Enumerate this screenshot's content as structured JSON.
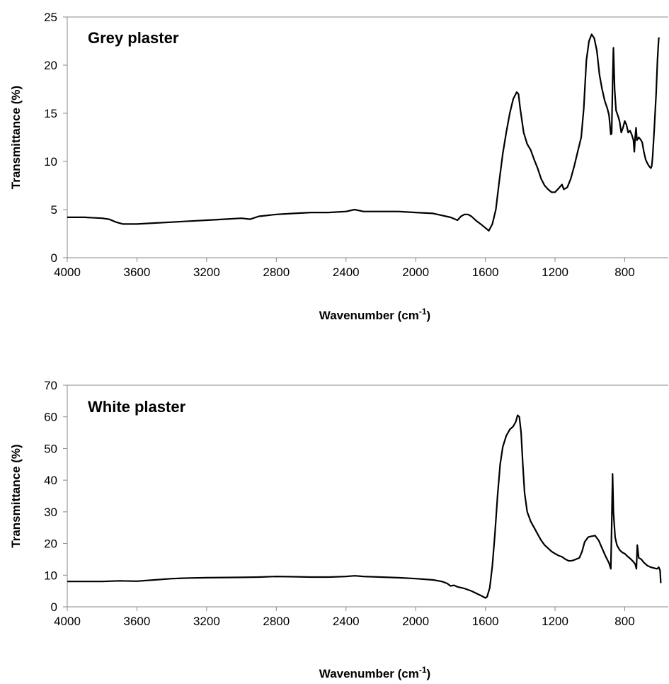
{
  "chart_data": [
    {
      "type": "line",
      "title": "Grey plaster",
      "xlabel": "Wavenumber (cm",
      "xlabel_sup": "-1",
      "xlabel_close": ")",
      "ylabel": "Transmittance (%)",
      "xlim": [
        4000,
        550
      ],
      "ylim": [
        0,
        25
      ],
      "x_ticks": [
        4000,
        3600,
        3200,
        2800,
        2400,
        2000,
        1600,
        1200,
        800
      ],
      "y_ticks": [
        0,
        5,
        10,
        15,
        20,
        25
      ],
      "grid": false,
      "series": [
        {
          "points": [
            [
              4000,
              4.2
            ],
            [
              3900,
              4.2
            ],
            [
              3800,
              4.1
            ],
            [
              3760,
              4.0
            ],
            [
              3720,
              3.7
            ],
            [
              3680,
              3.5
            ],
            [
              3600,
              3.5
            ],
            [
              3500,
              3.6
            ],
            [
              3400,
              3.7
            ],
            [
              3300,
              3.8
            ],
            [
              3200,
              3.9
            ],
            [
              3100,
              4.0
            ],
            [
              3000,
              4.1
            ],
            [
              2950,
              4.0
            ],
            [
              2900,
              4.3
            ],
            [
              2800,
              4.5
            ],
            [
              2700,
              4.6
            ],
            [
              2600,
              4.7
            ],
            [
              2500,
              4.7
            ],
            [
              2400,
              4.8
            ],
            [
              2350,
              5.0
            ],
            [
              2300,
              4.8
            ],
            [
              2200,
              4.8
            ],
            [
              2100,
              4.8
            ],
            [
              2000,
              4.7
            ],
            [
              1900,
              4.6
            ],
            [
              1850,
              4.4
            ],
            [
              1800,
              4.2
            ],
            [
              1760,
              3.9
            ],
            [
              1740,
              4.3
            ],
            [
              1720,
              4.5
            ],
            [
              1700,
              4.5
            ],
            [
              1680,
              4.3
            ],
            [
              1650,
              3.8
            ],
            [
              1620,
              3.4
            ],
            [
              1600,
              3.1
            ],
            [
              1580,
              2.8
            ],
            [
              1560,
              3.5
            ],
            [
              1540,
              5.0
            ],
            [
              1520,
              8.0
            ],
            [
              1500,
              10.8
            ],
            [
              1480,
              13.0
            ],
            [
              1460,
              15.0
            ],
            [
              1440,
              16.5
            ],
            [
              1420,
              17.2
            ],
            [
              1410,
              17.0
            ],
            [
              1400,
              15.5
            ],
            [
              1380,
              13.0
            ],
            [
              1360,
              11.8
            ],
            [
              1340,
              11.2
            ],
            [
              1320,
              10.2
            ],
            [
              1300,
              9.3
            ],
            [
              1280,
              8.2
            ],
            [
              1260,
              7.5
            ],
            [
              1240,
              7.1
            ],
            [
              1220,
              6.8
            ],
            [
              1200,
              6.8
            ],
            [
              1180,
              7.2
            ],
            [
              1160,
              7.6
            ],
            [
              1150,
              7.1
            ],
            [
              1130,
              7.3
            ],
            [
              1110,
              8.2
            ],
            [
              1090,
              9.5
            ],
            [
              1070,
              11.0
            ],
            [
              1050,
              12.5
            ],
            [
              1035,
              15.5
            ],
            [
              1020,
              20.5
            ],
            [
              1005,
              22.5
            ],
            [
              990,
              23.2
            ],
            [
              975,
              22.8
            ],
            [
              960,
              21.5
            ],
            [
              945,
              19.0
            ],
            [
              930,
              17.5
            ],
            [
              915,
              16.3
            ],
            [
              900,
              15.5
            ],
            [
              890,
              14.8
            ],
            [
              880,
              12.8
            ],
            [
              875,
              12.9
            ],
            [
              870,
              18.0
            ],
            [
              865,
              21.8
            ],
            [
              858,
              17.5
            ],
            [
              850,
              15.3
            ],
            [
              840,
              14.8
            ],
            [
              830,
              14.2
            ],
            [
              820,
              13.0
            ],
            [
              810,
              13.5
            ],
            [
              800,
              14.2
            ],
            [
              790,
              13.8
            ],
            [
              780,
              13.0
            ],
            [
              770,
              13.2
            ],
            [
              760,
              12.8
            ],
            [
              750,
              12.2
            ],
            [
              745,
              11.0
            ],
            [
              740,
              12.5
            ],
            [
              735,
              13.5
            ],
            [
              730,
              12.2
            ],
            [
              720,
              12.5
            ],
            [
              710,
              12.3
            ],
            [
              700,
              12.0
            ],
            [
              690,
              11.0
            ],
            [
              680,
              10.2
            ],
            [
              670,
              9.8
            ],
            [
              660,
              9.5
            ],
            [
              650,
              9.3
            ],
            [
              645,
              9.5
            ],
            [
              640,
              10.5
            ],
            [
              630,
              13.5
            ],
            [
              620,
              17.0
            ],
            [
              612,
              20.5
            ],
            [
              605,
              22.8
            ],
            [
              600,
              22.8
            ]
          ]
        }
      ]
    },
    {
      "type": "line",
      "title": "White plaster",
      "xlabel": "Wavenumber (cm",
      "xlabel_sup": "-1",
      "xlabel_close": ")",
      "ylabel": "Transmittance (%)",
      "xlim": [
        4000,
        550
      ],
      "ylim": [
        0,
        70
      ],
      "x_ticks": [
        4000,
        3600,
        3200,
        2800,
        2400,
        2000,
        1600,
        1200,
        800
      ],
      "y_ticks": [
        0,
        10,
        20,
        30,
        40,
        50,
        60,
        70
      ],
      "grid": false,
      "series": [
        {
          "points": [
            [
              4000,
              8.0
            ],
            [
              3800,
              8.0
            ],
            [
              3700,
              8.2
            ],
            [
              3600,
              8.1
            ],
            [
              3500,
              8.5
            ],
            [
              3400,
              8.9
            ],
            [
              3300,
              9.1
            ],
            [
              3200,
              9.2
            ],
            [
              3000,
              9.3
            ],
            [
              2900,
              9.4
            ],
            [
              2800,
              9.6
            ],
            [
              2700,
              9.5
            ],
            [
              2600,
              9.4
            ],
            [
              2500,
              9.4
            ],
            [
              2400,
              9.6
            ],
            [
              2350,
              9.8
            ],
            [
              2300,
              9.6
            ],
            [
              2200,
              9.4
            ],
            [
              2100,
              9.2
            ],
            [
              2000,
              8.9
            ],
            [
              1900,
              8.5
            ],
            [
              1850,
              8.0
            ],
            [
              1820,
              7.4
            ],
            [
              1800,
              6.6
            ],
            [
              1780,
              6.8
            ],
            [
              1760,
              6.3
            ],
            [
              1720,
              5.8
            ],
            [
              1680,
              5.0
            ],
            [
              1650,
              4.2
            ],
            [
              1620,
              3.4
            ],
            [
              1600,
              2.8
            ],
            [
              1590,
              3.2
            ],
            [
              1575,
              6.0
            ],
            [
              1560,
              13.0
            ],
            [
              1545,
              23.0
            ],
            [
              1530,
              35.0
            ],
            [
              1515,
              45.0
            ],
            [
              1500,
              50.5
            ],
            [
              1480,
              54.0
            ],
            [
              1460,
              56.0
            ],
            [
              1440,
              57.0
            ],
            [
              1425,
              58.5
            ],
            [
              1415,
              60.5
            ],
            [
              1405,
              60.0
            ],
            [
              1395,
              55.0
            ],
            [
              1385,
              45.0
            ],
            [
              1375,
              36.0
            ],
            [
              1360,
              30.0
            ],
            [
              1340,
              27.0
            ],
            [
              1320,
              25.0
            ],
            [
              1300,
              23.0
            ],
            [
              1280,
              21.0
            ],
            [
              1260,
              19.5
            ],
            [
              1240,
              18.5
            ],
            [
              1220,
              17.5
            ],
            [
              1200,
              16.8
            ],
            [
              1180,
              16.2
            ],
            [
              1160,
              15.8
            ],
            [
              1140,
              15.0
            ],
            [
              1120,
              14.5
            ],
            [
              1100,
              14.6
            ],
            [
              1080,
              15.0
            ],
            [
              1060,
              15.5
            ],
            [
              1045,
              17.5
            ],
            [
              1030,
              20.5
            ],
            [
              1010,
              22.0
            ],
            [
              990,
              22.3
            ],
            [
              970,
              22.5
            ],
            [
              950,
              21.0
            ],
            [
              930,
              18.5
            ],
            [
              910,
              16.0
            ],
            [
              890,
              13.8
            ],
            [
              880,
              12.0
            ],
            [
              875,
              25.0
            ],
            [
              870,
              42.0
            ],
            [
              865,
              30.0
            ],
            [
              855,
              22.0
            ],
            [
              845,
              19.5
            ],
            [
              830,
              18.0
            ],
            [
              815,
              17.2
            ],
            [
              800,
              16.8
            ],
            [
              785,
              16.0
            ],
            [
              770,
              15.3
            ],
            [
              755,
              14.5
            ],
            [
              740,
              13.5
            ],
            [
              733,
              12.0
            ],
            [
              728,
              19.5
            ],
            [
              720,
              15.5
            ],
            [
              705,
              15.0
            ],
            [
              690,
              14.0
            ],
            [
              670,
              13.0
            ],
            [
              650,
              12.5
            ],
            [
              630,
              12.2
            ],
            [
              615,
              12.0
            ],
            [
              605,
              12.5
            ],
            [
              597,
              11.5
            ],
            [
              593,
              7.5
            ]
          ]
        }
      ]
    }
  ]
}
